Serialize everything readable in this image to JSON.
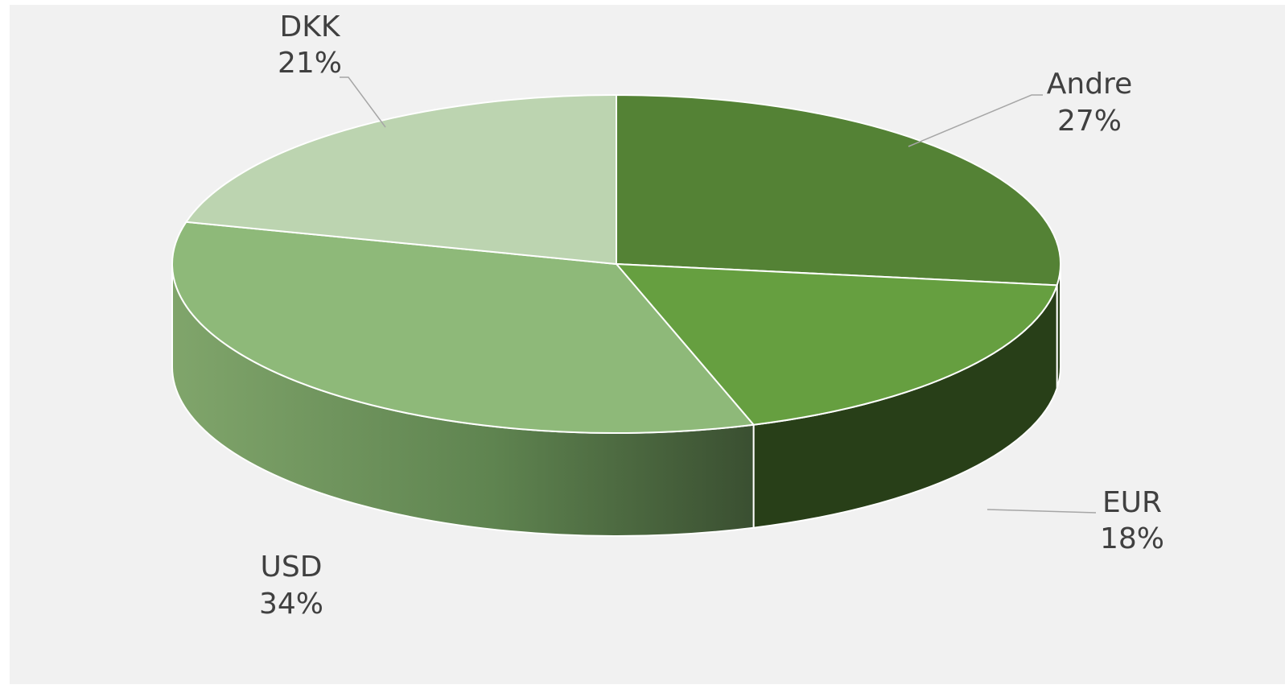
{
  "chart_data": {
    "type": "pie",
    "variant": "3d",
    "categories": [
      "Andre",
      "EUR",
      "USD",
      "DKK"
    ],
    "values": [
      27,
      18,
      34,
      21
    ],
    "labels": [
      {
        "category": "Andre",
        "percent": "27%"
      },
      {
        "category": "EUR",
        "percent": "18%"
      },
      {
        "category": "USD",
        "percent": "34%"
      },
      {
        "category": "DKK",
        "percent": "21%"
      }
    ],
    "colors": [
      "#548235",
      "#669f40",
      "#8eb979",
      "#bcd4b0"
    ],
    "side_colors": [
      "#2a4019",
      "#283f18",
      "#6f9a5d",
      "#8fae80"
    ],
    "background": "#f1f1f1",
    "start": "12 o'clock",
    "direction": "clockwise",
    "legend": "none"
  }
}
